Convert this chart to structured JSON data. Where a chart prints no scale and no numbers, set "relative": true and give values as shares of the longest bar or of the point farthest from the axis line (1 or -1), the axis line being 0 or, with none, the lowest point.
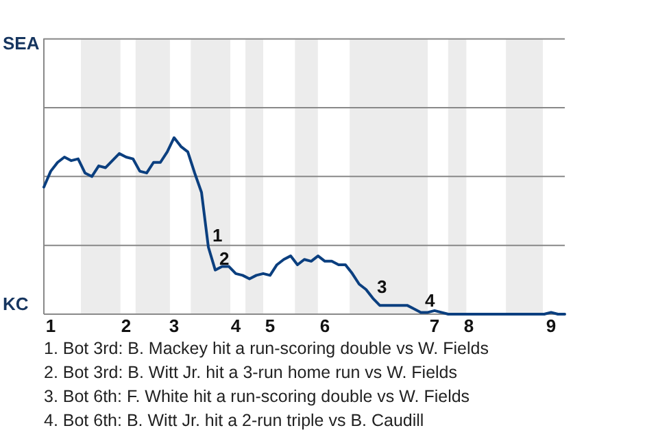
{
  "chart_data": {
    "type": "line",
    "relative": true,
    "categories": [
      null,
      "1",
      null,
      null,
      null,
      null,
      null,
      null,
      null,
      null,
      null,
      null,
      "2",
      null,
      null,
      null,
      null,
      null,
      null,
      "3",
      null,
      null,
      null,
      null,
      null,
      null,
      null,
      null,
      "4",
      null,
      null,
      null,
      null,
      "5",
      null,
      null,
      null,
      null,
      null,
      null,
      null,
      "6",
      null,
      null,
      null,
      null,
      null,
      null,
      null,
      null,
      null,
      null,
      null,
      null,
      null,
      null,
      null,
      "7",
      null,
      null,
      null,
      null,
      "8",
      null,
      null,
      null,
      null,
      null,
      null,
      null,
      null,
      null,
      null,
      null,
      "9",
      null,
      null
    ],
    "series": [
      {
        "color": "#0b3f7f",
        "values": [
          0.72,
          0.81,
          0.86,
          0.89,
          0.87,
          0.88,
          0.8,
          0.78,
          0.84,
          0.83,
          0.87,
          0.91,
          0.89,
          0.88,
          0.81,
          0.8,
          0.86,
          0.86,
          0.92,
          1,
          0.95,
          0.92,
          0.8,
          0.69,
          0.38,
          0.25,
          0.27,
          0.27,
          0.23,
          0.22,
          0.2,
          0.22,
          0.23,
          0.22,
          0.28,
          0.31,
          0.33,
          0.28,
          0.31,
          0.3,
          0.33,
          0.3,
          0.3,
          0.28,
          0.28,
          0.23,
          0.17,
          0.14,
          0.09,
          0.05,
          0.05,
          0.05,
          0.05,
          0.05,
          0.03,
          0.01,
          0.01,
          0.02,
          0.01,
          0,
          0,
          0,
          0,
          0,
          0,
          0,
          0,
          0,
          0,
          0,
          0,
          0,
          0,
          0,
          0.01,
          0,
          0
        ]
      }
    ],
    "ref_lines": [
      {
        "axis": "y",
        "value": 0.39,
        "color": "#888888"
      },
      {
        "axis": "y",
        "value": 0.78,
        "color": "#888888"
      },
      {
        "axis": "y",
        "value": 1.17,
        "color": "#888888"
      },
      {
        "axis": "y",
        "value": 1.56,
        "color": "#888888"
      }
    ],
    "annotations": [
      "SEA",
      "KC",
      {
        "text": "1",
        "y": 0.38
      },
      {
        "text": "2",
        "y": 0.25
      },
      {
        "text": "3",
        "y": 0.09
      },
      {
        "text": "4",
        "y": 0.01
      },
      "1. Bot 3rd: B. Mackey hit a run-scoring double vs W. Fields",
      "2. Bot 3rd: B. Witt Jr. hit a 3-run home run vs W. Fields",
      "3. Bot 6th: F. White hit a run-scoring double vs W. Fields",
      "4. Bot 6th: B. Witt Jr. hit a 2-run triple vs B. Caudill"
    ],
    "marker": "none",
    "line_style": "solid"
  }
}
